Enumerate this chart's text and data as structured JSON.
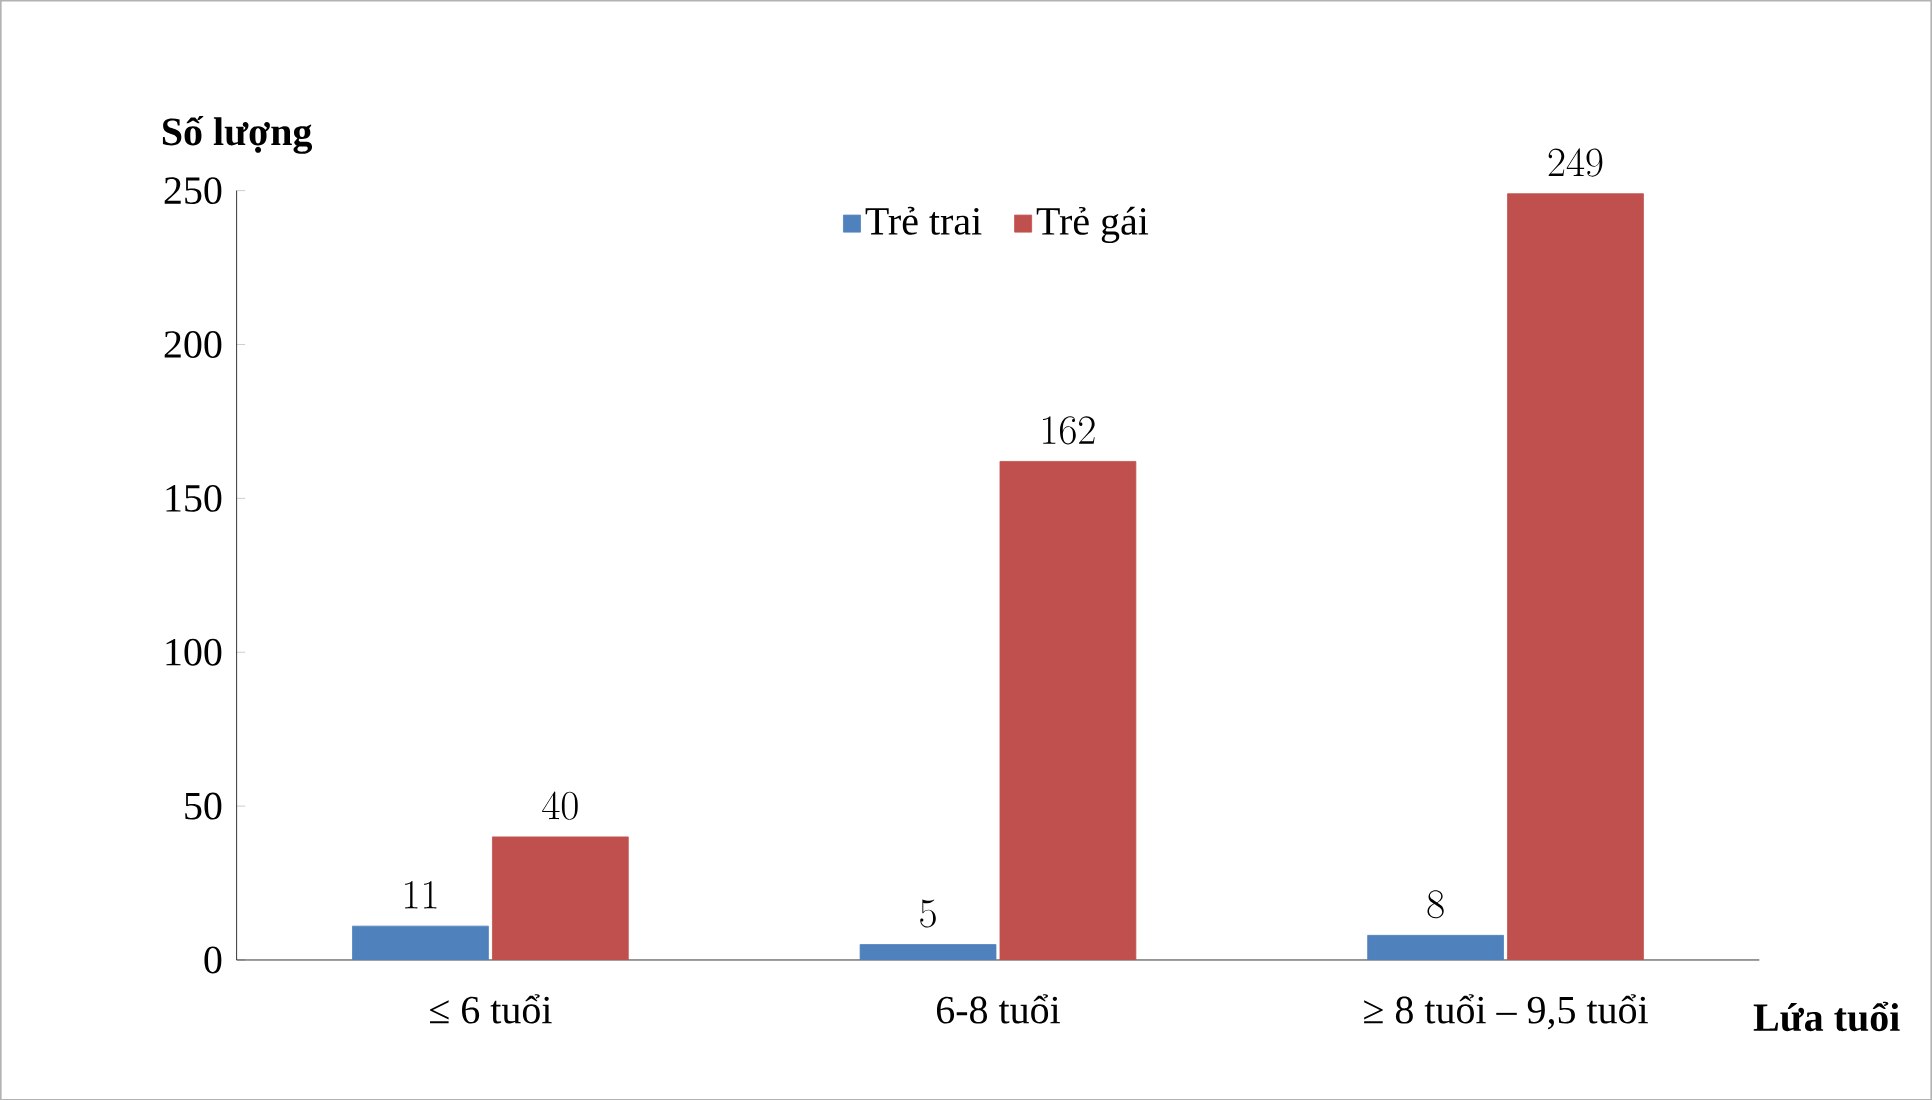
{
  "chart_data": {
    "type": "bar",
    "ylabel": "Số lượng",
    "xlabel": "Lứa tuổi",
    "categories": [
      "≤  6 tuổi",
      "6-8 tuổi",
      "≥ 8 tuổi – 9,5 tuổi"
    ],
    "series": [
      {
        "name": "Trẻ trai",
        "color": "#4f81bd",
        "values": [
          11,
          5,
          8
        ]
      },
      {
        "name": "Trẻ gái",
        "color": "#c0504d",
        "values": [
          40,
          162,
          249
        ]
      }
    ],
    "ylim": [
      0,
      250
    ],
    "yticks": [
      0,
      50,
      100,
      150,
      200,
      250
    ],
    "data_labels": true,
    "legend": "top",
    "grid": false
  }
}
